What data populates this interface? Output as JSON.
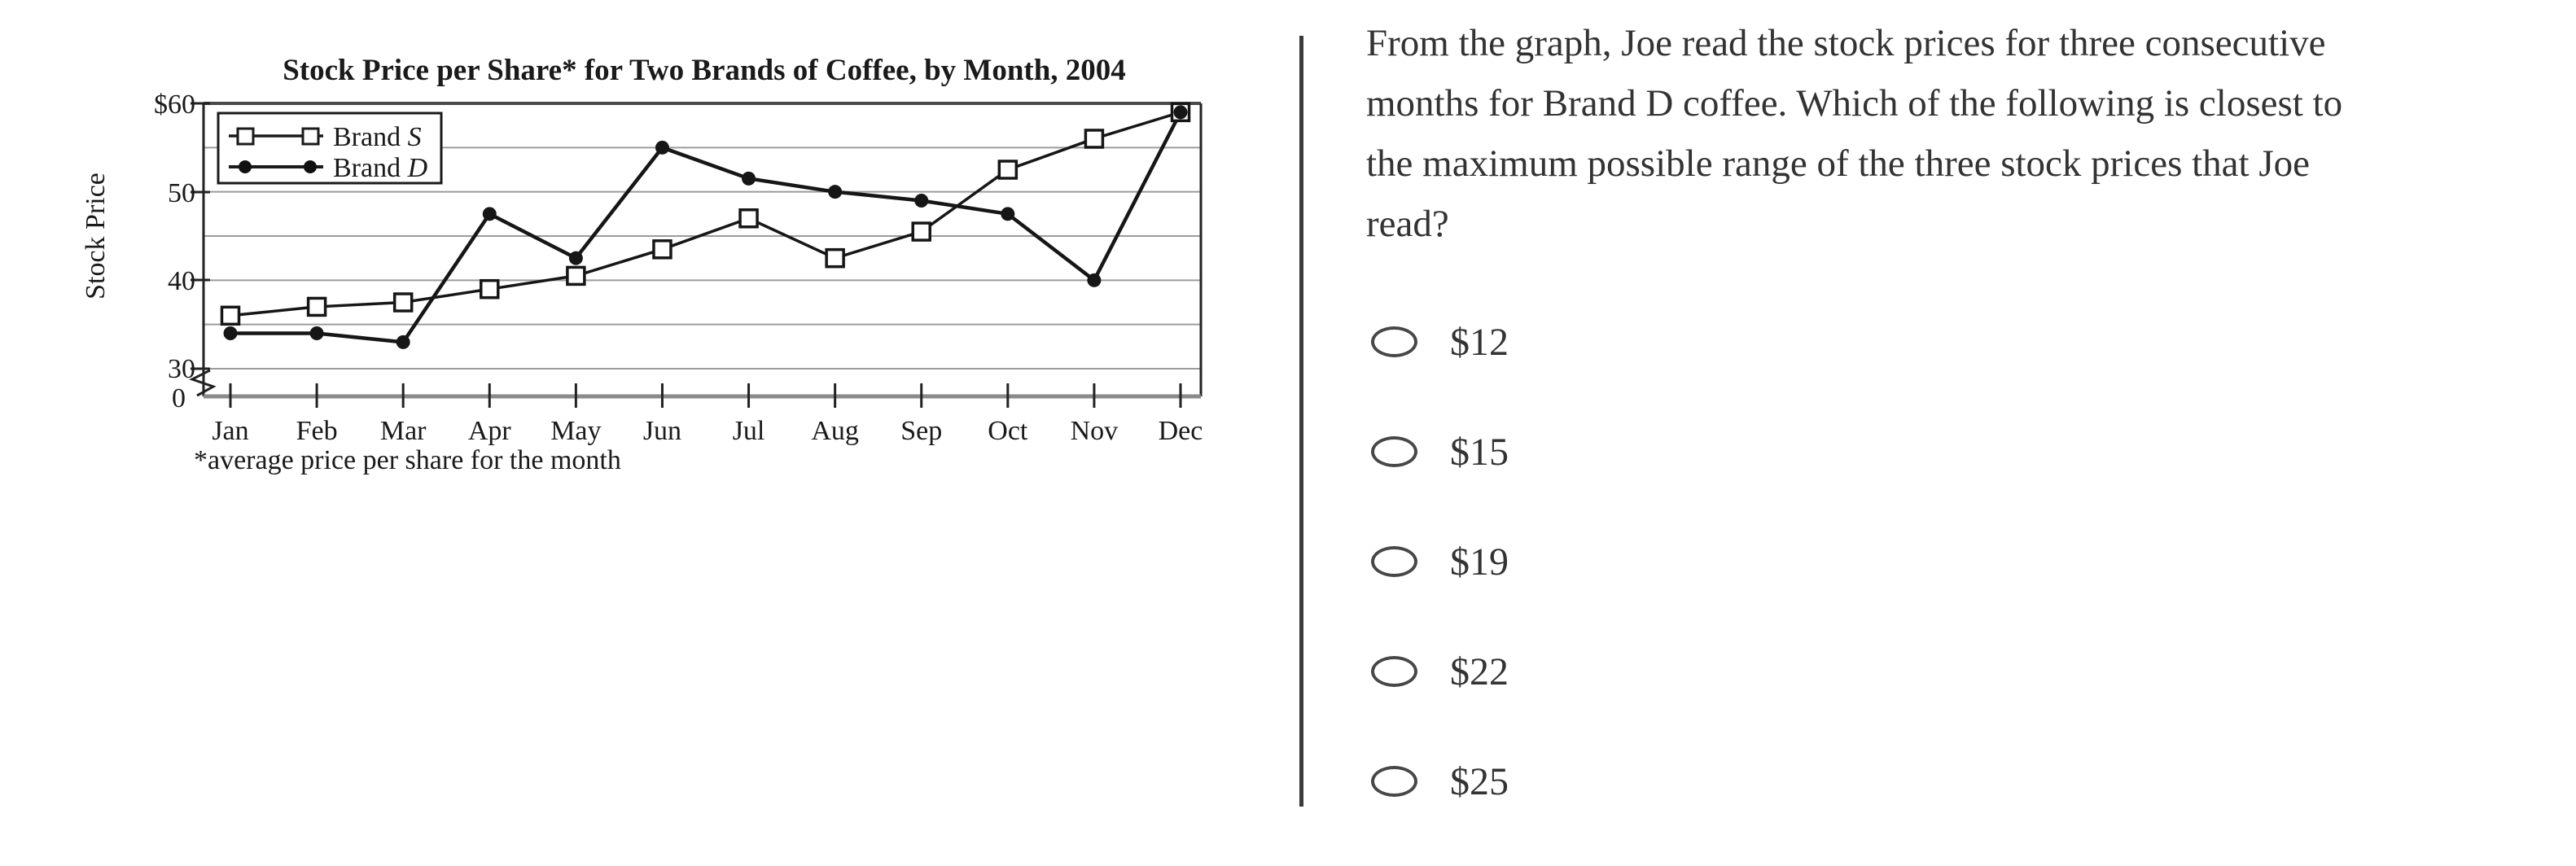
{
  "figure": {
    "title": "Stock Price per Share* for Two Brands of Coffee, by Month, 2004",
    "y_axis_title": "Stock Price",
    "footnote": "*average price per share for the month",
    "y_ticks": [
      "$60",
      "50",
      "40",
      "30",
      "0"
    ],
    "legend": {
      "s_prefix": "Brand ",
      "s_name": "S",
      "d_prefix": "Brand ",
      "d_name": "D"
    }
  },
  "chart_data": {
    "type": "line",
    "title": "Stock Price per Share* for Two Brands of Coffee, by Month, 2004",
    "ylabel": "Stock Price",
    "footnote": "*average price per share for the month",
    "categories": [
      "Jan",
      "Feb",
      "Mar",
      "Apr",
      "May",
      "Jun",
      "Jul",
      "Aug",
      "Sep",
      "Oct",
      "Nov",
      "Dec"
    ],
    "series": [
      {
        "name": "Brand S",
        "marker": "open-square",
        "values": [
          36,
          37,
          37.5,
          39,
          40.5,
          43.5,
          47,
          42.5,
          45.5,
          52.5,
          56,
          59
        ]
      },
      {
        "name": "Brand D",
        "marker": "filled-circle",
        "values": [
          34,
          34,
          33,
          47.5,
          42.5,
          55,
          51.5,
          50,
          49,
          47.5,
          40,
          59
        ]
      }
    ],
    "ylim": [
      30,
      60
    ],
    "y_axis_break": true,
    "gridline_step": 5,
    "legend_position": "top-left",
    "grid": true
  },
  "question": {
    "lines": [
      "From the graph, Joe read the stock prices for three consecutive",
      "months for Brand D coffee. Which of the following is closest to",
      "the maximum possible range of the three stock prices that Joe",
      "read?"
    ]
  },
  "options": [
    {
      "label": "$12"
    },
    {
      "label": "$15"
    },
    {
      "label": "$19"
    },
    {
      "label": "$22"
    },
    {
      "label": "$25"
    }
  ]
}
